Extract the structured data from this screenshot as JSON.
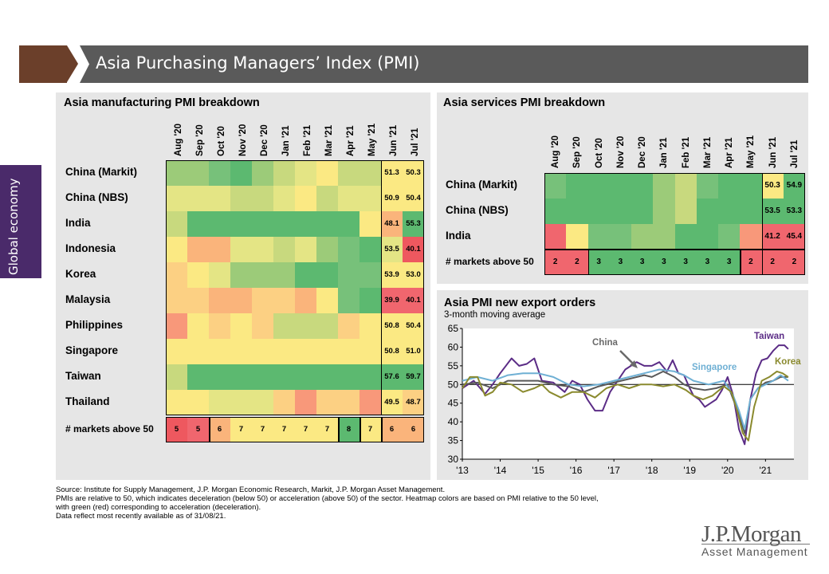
{
  "header": {
    "title": "Asia Purchasing Managers’ Index (PMI)"
  },
  "side_tab": {
    "label": "Global economy"
  },
  "colors": {
    "brown": "#6b3f2a",
    "gray_bar": "#5a5a5a",
    "purple": "#4a2a6a"
  },
  "palette": {
    "G4": "#5cb970",
    "G3": "#77c17a",
    "G2": "#9ccb79",
    "G1": "#c8d97e",
    "G0": "#e4e585",
    "Y": "#fbe983",
    "O1": "#fcd083",
    "O2": "#fab47b",
    "R1": "#f8987a",
    "R2": "#f0666e",
    "R3": "#ee585f"
  },
  "manufacturing": {
    "title": "Asia manufacturing PMI breakdown",
    "months": [
      "Aug '20",
      "Sep '20",
      "Oct '20",
      "Nov '20",
      "Dec '20",
      "Jan '21",
      "Feb '21",
      "Mar '21",
      "Apr '21",
      "May '21",
      "Jun '21",
      "Jul '21"
    ],
    "rows": [
      {
        "label": "China (Markit)",
        "colors": [
          "G2",
          "G2",
          "G3",
          "G4",
          "G2",
          "G1",
          "G0",
          "Y",
          "G1",
          "G1",
          "Y",
          "Y"
        ],
        "values": [
          "51.3",
          "50.3"
        ]
      },
      {
        "label": "China (NBS)",
        "colors": [
          "G0",
          "G0",
          "G0",
          "G1",
          "G1",
          "G0",
          "Y",
          "G1",
          "G0",
          "G0",
          "Y",
          "Y"
        ],
        "values": [
          "50.9",
          "50.4"
        ]
      },
      {
        "label": "India",
        "colors": [
          "G1",
          "G4",
          "G4",
          "G4",
          "G4",
          "G4",
          "G4",
          "G4",
          "G4",
          "Y",
          "O2",
          "G4"
        ],
        "values": [
          "48.1",
          "55.3"
        ]
      },
      {
        "label": "Indonesia",
        "colors": [
          "Y",
          "O2",
          "O2",
          "G0",
          "G0",
          "G1",
          "G0",
          "G2",
          "G3",
          "G4",
          "G0",
          "R3"
        ],
        "values": [
          "53.5",
          "40.1"
        ]
      },
      {
        "label": "Korea",
        "colors": [
          "O1",
          "Y",
          "G0",
          "G2",
          "G2",
          "G2",
          "G4",
          "G4",
          "G3",
          "G3",
          "Y",
          "Y"
        ],
        "values": [
          "53.9",
          "53.0"
        ]
      },
      {
        "label": "Malaysia",
        "colors": [
          "O1",
          "O1",
          "O2",
          "O2",
          "O1",
          "O1",
          "O2",
          "Y",
          "G3",
          "G4",
          "R2",
          "R2"
        ],
        "values": [
          "39.9",
          "40.1"
        ]
      },
      {
        "label": "Philippines",
        "colors": [
          "R1",
          "Y",
          "O1",
          "Y",
          "O1",
          "G1",
          "G1",
          "G1",
          "O1",
          "Y",
          "Y",
          "Y"
        ],
        "values": [
          "50.8",
          "50.4"
        ]
      },
      {
        "label": "Singapore",
        "colors": [
          "Y",
          "Y",
          "Y",
          "Y",
          "Y",
          "Y",
          "Y",
          "Y",
          "Y",
          "Y",
          "Y",
          "Y"
        ],
        "values": [
          "50.8",
          "51.0"
        ]
      },
      {
        "label": "Taiwan",
        "colors": [
          "G1",
          "G4",
          "G4",
          "G4",
          "G4",
          "G4",
          "G4",
          "G4",
          "G4",
          "G4",
          "G4",
          "G4"
        ],
        "values": [
          "57.6",
          "59.7"
        ]
      },
      {
        "label": "Thailand",
        "colors": [
          "Y",
          "Y",
          "G0",
          "G0",
          "G0",
          "O1",
          "R1",
          "O1",
          "O1",
          "R1",
          "Y",
          "O1"
        ],
        "values": [
          "49.5",
          "48.7"
        ]
      }
    ],
    "markets_label": "# markets above 50",
    "markets": [
      {
        "value": "5",
        "color": "R3"
      },
      {
        "value": "5",
        "color": "R2"
      },
      {
        "value": "6",
        "color": "O2"
      },
      {
        "value": "7",
        "color": "Y"
      },
      {
        "value": "7",
        "color": "Y"
      },
      {
        "value": "7",
        "color": "Y"
      },
      {
        "value": "7",
        "color": "Y"
      },
      {
        "value": "7",
        "color": "Y"
      },
      {
        "value": "8",
        "color": "G4"
      },
      {
        "value": "7",
        "color": "Y"
      },
      {
        "value": "6",
        "color": "O2"
      },
      {
        "value": "6",
        "color": "O2"
      }
    ]
  },
  "services": {
    "title": "Asia services PMI breakdown",
    "months": [
      "Aug '20",
      "Sep '20",
      "Oct '20",
      "Nov '20",
      "Dec '20",
      "Jan '21",
      "Feb '21",
      "Mar '21",
      "Apr '21",
      "May '21",
      "Jun '21",
      "Jul '21"
    ],
    "rows": [
      {
        "label": "China (Markit)",
        "colors": [
          "G3",
          "G4",
          "G4",
          "G4",
          "G4",
          "G2",
          "G1",
          "G3",
          "G4",
          "G4",
          "Y",
          "G4"
        ],
        "values": [
          "50.3",
          "54.9"
        ]
      },
      {
        "label": "China (NBS)",
        "colors": [
          "G4",
          "G4",
          "G4",
          "G4",
          "G4",
          "G2",
          "G1",
          "G4",
          "G4",
          "G4",
          "G4",
          "G4"
        ],
        "values": [
          "53.5",
          "53.3"
        ]
      },
      {
        "label": "India",
        "colors": [
          "R2",
          "Y",
          "G3",
          "G3",
          "G2",
          "G2",
          "G4",
          "G4",
          "G3",
          "R1",
          "R2",
          "R2"
        ],
        "values": [
          "41.2",
          "45.4"
        ]
      }
    ],
    "markets_label": "# markets above 50",
    "markets": [
      {
        "value": "2",
        "color": "R2"
      },
      {
        "value": "2",
        "color": "R2"
      },
      {
        "value": "3",
        "color": "G4"
      },
      {
        "value": "3",
        "color": "G4"
      },
      {
        "value": "3",
        "color": "G4"
      },
      {
        "value": "3",
        "color": "G4"
      },
      {
        "value": "3",
        "color": "G4"
      },
      {
        "value": "3",
        "color": "G4"
      },
      {
        "value": "3",
        "color": "G4"
      },
      {
        "value": "2",
        "color": "R2"
      },
      {
        "value": "2",
        "color": "R2"
      },
      {
        "value": "2",
        "color": "R2"
      }
    ]
  },
  "chart_data": {
    "type": "line",
    "title": "Asia PMI new export orders",
    "subtitle": "3-month moving average",
    "ylim": [
      30,
      65
    ],
    "yticks": [
      30,
      35,
      40,
      45,
      50,
      55,
      60,
      65
    ],
    "xlim": [
      2013.0,
      2021.75
    ],
    "xtick_labels": [
      "'13",
      "'14",
      "'15",
      "'16",
      "'17",
      "'18",
      "'19",
      "'20",
      "'21"
    ],
    "reference_line": 50,
    "series": [
      {
        "name": "Taiwan",
        "color": "#5b2c86",
        "points": [
          [
            2013.0,
            49
          ],
          [
            2013.3,
            51
          ],
          [
            2013.6,
            47.5
          ],
          [
            2013.8,
            50
          ],
          [
            2014.0,
            53
          ],
          [
            2014.3,
            57
          ],
          [
            2014.5,
            55
          ],
          [
            2014.7,
            55.5
          ],
          [
            2014.9,
            57
          ],
          [
            2015.1,
            51
          ],
          [
            2015.4,
            50.5
          ],
          [
            2015.7,
            48
          ],
          [
            2015.9,
            51
          ],
          [
            2016.1,
            50
          ],
          [
            2016.3,
            46
          ],
          [
            2016.5,
            43
          ],
          [
            2016.7,
            43
          ],
          [
            2016.9,
            48
          ],
          [
            2017.1,
            51
          ],
          [
            2017.3,
            54
          ],
          [
            2017.6,
            56
          ],
          [
            2017.8,
            55
          ],
          [
            2018.0,
            55
          ],
          [
            2018.2,
            56
          ],
          [
            2018.4,
            53.5
          ],
          [
            2018.55,
            56.5
          ],
          [
            2018.7,
            53
          ],
          [
            2018.85,
            52.5
          ],
          [
            2019.0,
            49
          ],
          [
            2019.1,
            47
          ],
          [
            2019.25,
            46
          ],
          [
            2019.4,
            44
          ],
          [
            2019.55,
            45
          ],
          [
            2019.7,
            46
          ],
          [
            2019.85,
            48.5
          ],
          [
            2020.0,
            52
          ],
          [
            2020.15,
            47
          ],
          [
            2020.3,
            38
          ],
          [
            2020.45,
            34
          ],
          [
            2020.6,
            46
          ],
          [
            2020.75,
            53
          ],
          [
            2020.9,
            56.5
          ],
          [
            2021.05,
            57
          ],
          [
            2021.2,
            59
          ],
          [
            2021.35,
            60.5
          ],
          [
            2021.5,
            60.5
          ],
          [
            2021.6,
            59.5
          ]
        ]
      },
      {
        "name": "China",
        "color": "#595959",
        "points": [
          [
            2013.0,
            50
          ],
          [
            2013.4,
            50.5
          ],
          [
            2013.8,
            49
          ],
          [
            2014.2,
            51
          ],
          [
            2014.6,
            51
          ],
          [
            2015.0,
            51
          ],
          [
            2015.4,
            50
          ],
          [
            2015.8,
            49.5
          ],
          [
            2016.2,
            48
          ],
          [
            2016.6,
            49.5
          ],
          [
            2017.0,
            50.5
          ],
          [
            2017.4,
            51.5
          ],
          [
            2017.8,
            52.5
          ],
          [
            2018.0,
            52
          ],
          [
            2018.3,
            53.5
          ],
          [
            2018.6,
            52
          ],
          [
            2018.85,
            50
          ],
          [
            2019.1,
            49
          ],
          [
            2019.4,
            48.5
          ],
          [
            2019.7,
            49
          ],
          [
            2020.0,
            50
          ],
          [
            2020.15,
            46
          ],
          [
            2020.3,
            42
          ],
          [
            2020.45,
            37
          ],
          [
            2020.6,
            46
          ],
          [
            2020.8,
            49
          ],
          [
            2021.0,
            50.5
          ],
          [
            2021.2,
            51
          ],
          [
            2021.4,
            52
          ],
          [
            2021.6,
            52
          ]
        ]
      },
      {
        "name": "Singapore",
        "color": "#6fb0d4",
        "points": [
          [
            2013.0,
            51
          ],
          [
            2013.4,
            52
          ],
          [
            2013.8,
            51
          ],
          [
            2014.2,
            52.5
          ],
          [
            2014.6,
            53
          ],
          [
            2015.0,
            53
          ],
          [
            2015.4,
            52
          ],
          [
            2015.8,
            50
          ],
          [
            2016.2,
            49.5
          ],
          [
            2016.6,
            50
          ],
          [
            2017.0,
            51
          ],
          [
            2017.4,
            52
          ],
          [
            2017.8,
            53
          ],
          [
            2018.2,
            54
          ],
          [
            2018.6,
            53.5
          ],
          [
            2018.85,
            52.5
          ],
          [
            2019.1,
            51
          ],
          [
            2019.5,
            50
          ],
          [
            2019.9,
            51
          ],
          [
            2020.15,
            47
          ],
          [
            2020.3,
            43
          ],
          [
            2020.45,
            38
          ],
          [
            2020.6,
            46
          ],
          [
            2020.8,
            49
          ],
          [
            2021.0,
            50
          ],
          [
            2021.2,
            51
          ],
          [
            2021.4,
            52.5
          ],
          [
            2021.6,
            51
          ]
        ]
      },
      {
        "name": "Korea",
        "color": "#8a8a2e",
        "points": [
          [
            2013.0,
            49
          ],
          [
            2013.2,
            52
          ],
          [
            2013.4,
            52
          ],
          [
            2013.6,
            47
          ],
          [
            2013.8,
            48
          ],
          [
            2014.0,
            50.5
          ],
          [
            2014.3,
            50
          ],
          [
            2014.6,
            48
          ],
          [
            2014.9,
            49
          ],
          [
            2015.1,
            50
          ],
          [
            2015.3,
            48
          ],
          [
            2015.6,
            46.5
          ],
          [
            2015.9,
            48
          ],
          [
            2016.2,
            48
          ],
          [
            2016.5,
            46.5
          ],
          [
            2016.8,
            49
          ],
          [
            2017.1,
            50
          ],
          [
            2017.4,
            49
          ],
          [
            2017.7,
            50
          ],
          [
            2018.0,
            50
          ],
          [
            2018.3,
            49.5
          ],
          [
            2018.6,
            50
          ],
          [
            2018.9,
            48.5
          ],
          [
            2019.1,
            47
          ],
          [
            2019.35,
            46
          ],
          [
            2019.6,
            47
          ],
          [
            2019.9,
            49.5
          ],
          [
            2020.1,
            48
          ],
          [
            2020.25,
            43
          ],
          [
            2020.4,
            37
          ],
          [
            2020.55,
            35
          ],
          [
            2020.7,
            44
          ],
          [
            2020.9,
            51
          ],
          [
            2021.1,
            52
          ],
          [
            2021.3,
            53.5
          ],
          [
            2021.45,
            53
          ],
          [
            2021.6,
            52
          ]
        ]
      }
    ]
  },
  "footnotes": [
    "Source: Institute for Supply Management, J.P. Morgan Economic Research, Markit, J.P. Morgan Asset Management.",
    "PMIs are relative to 50, which indicates deceleration (below 50) or acceleration (above 50) of the sector. Heatmap colors are based on PMI relative to the 50 level,",
    "with green (red) corresponding to acceleration (deceleration).",
    "Data reflect most recently available as of 31/08/21."
  ],
  "logo": {
    "line1": "J.P.Morgan",
    "line2": "Asset Management"
  }
}
